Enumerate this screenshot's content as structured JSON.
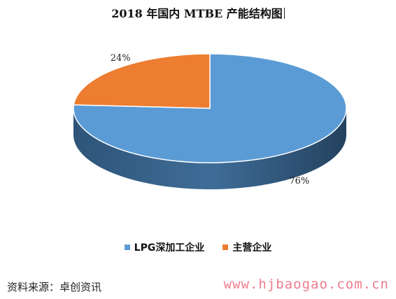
{
  "chart_data": {
    "type": "pie",
    "title": "2018 年国内 MTBE 产能结构图",
    "slices": [
      {
        "label": "LPG深加工企业",
        "value": 76,
        "value_label": "76%",
        "color": "#5b9bd5"
      },
      {
        "label": "主营企业",
        "value": 24,
        "value_label": "24%",
        "color": "#ed7d31"
      }
    ],
    "legend_position": "bottom",
    "style": "3d"
  },
  "footer": {
    "source": "资料来源：卓创资讯",
    "watermark": "www.hjbaogao.com.cn"
  }
}
